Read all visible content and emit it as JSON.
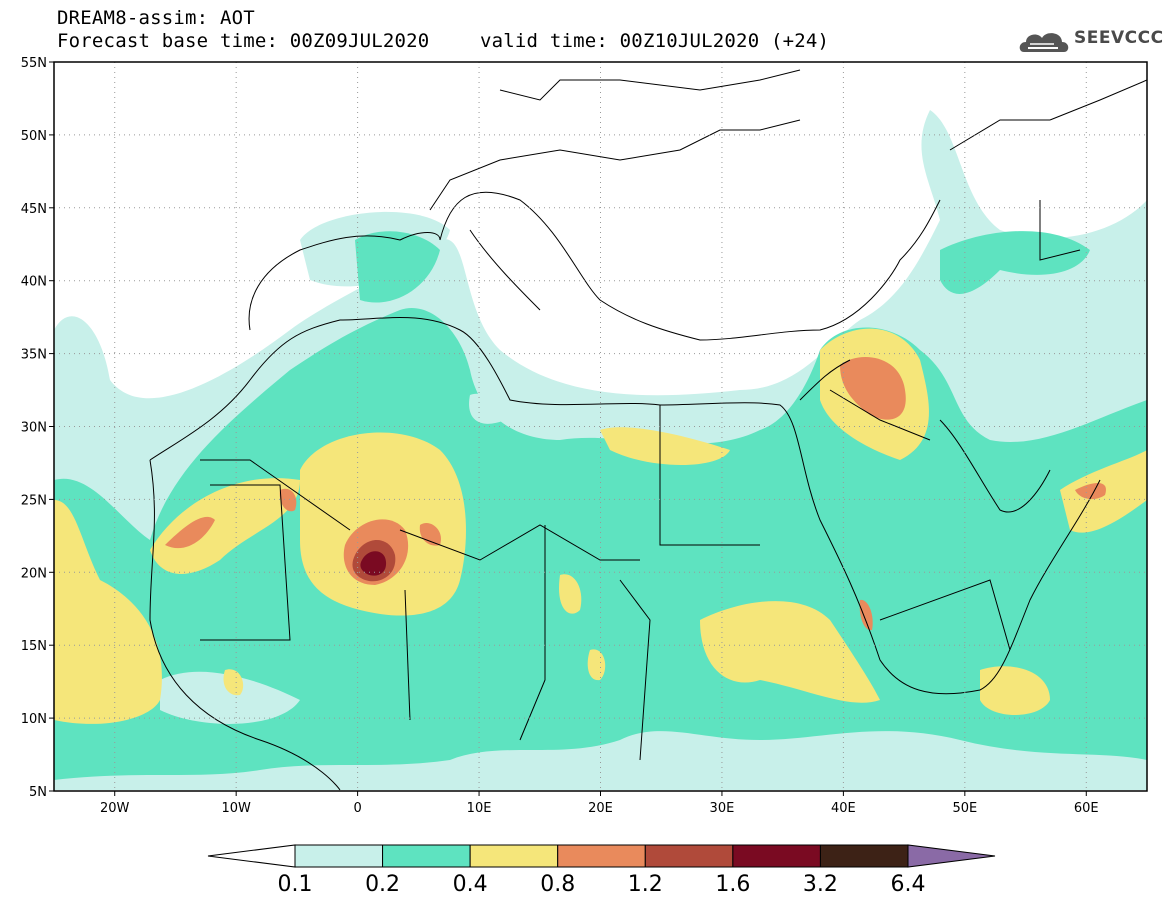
{
  "header": {
    "model_line": "DREAM8-assim: AOT",
    "base_time_line": "Forecast base time: 00Z09JUL2020",
    "valid_time_line": "valid time: 00Z10JUL2020 (+24)"
  },
  "logo": {
    "text": "SEEVCCC",
    "icon": "cloud-logo-icon"
  },
  "map": {
    "lon_range": [
      -25,
      65
    ],
    "lat_range": [
      5,
      55
    ],
    "lat_ticks": [
      {
        "value": 55,
        "label": "55N"
      },
      {
        "value": 50,
        "label": "50N"
      },
      {
        "value": 45,
        "label": "45N"
      },
      {
        "value": 40,
        "label": "40N"
      },
      {
        "value": 35,
        "label": "35N"
      },
      {
        "value": 30,
        "label": "30N"
      },
      {
        "value": 25,
        "label": "25N"
      },
      {
        "value": 20,
        "label": "20N"
      },
      {
        "value": 15,
        "label": "15N"
      },
      {
        "value": 10,
        "label": "10N"
      },
      {
        "value": 5,
        "label": "5N"
      }
    ],
    "lon_ticks": [
      {
        "value": -20,
        "label": "20W"
      },
      {
        "value": -10,
        "label": "10W"
      },
      {
        "value": 0,
        "label": "0"
      },
      {
        "value": 10,
        "label": "10E"
      },
      {
        "value": 20,
        "label": "20E"
      },
      {
        "value": 30,
        "label": "30E"
      },
      {
        "value": 40,
        "label": "40E"
      },
      {
        "value": 50,
        "label": "50E"
      },
      {
        "value": 60,
        "label": "60E"
      }
    ],
    "grid": true,
    "grid_style": "dotted"
  },
  "colorbar": {
    "boundaries": [
      "0.1",
      "0.2",
      "0.4",
      "0.8",
      "1.2",
      "1.6",
      "3.2",
      "6.4"
    ],
    "colors": [
      "#ffffff",
      "#c8f0ea",
      "#5ee3c0",
      "#f5e67a",
      "#e98a5c",
      "#b04a3a",
      "#7a0a22",
      "#3d2216",
      "#8a6aa6"
    ]
  },
  "aot_levels": {
    "l1": "#c8f0ea",
    "l2": "#5ee3c0",
    "l3": "#f5e67a",
    "l4": "#e98a5c",
    "l5": "#b04a3a",
    "l6": "#7a0a22"
  }
}
